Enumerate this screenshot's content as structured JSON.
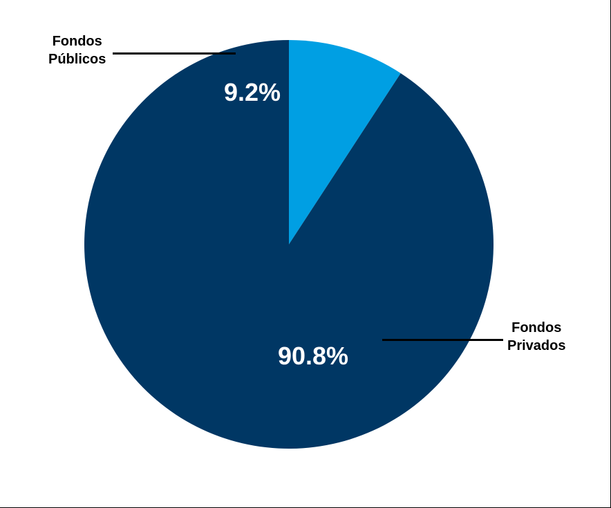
{
  "chart_data": {
    "type": "pie",
    "categories": [
      "Fondos Públicos",
      "Fondos Privados"
    ],
    "values": [
      9.2,
      90.8
    ],
    "value_labels": [
      "9.2%",
      "90.8%"
    ],
    "colors": [
      "#009FE3",
      "#003764"
    ],
    "slice_label_color": "#FFFFFF",
    "start": "12 o'clock, clockwise from the small slice",
    "legend": "none",
    "category_labels": [
      "Fondos\nPúblicos",
      "Fondos\nPrivados"
    ]
  }
}
